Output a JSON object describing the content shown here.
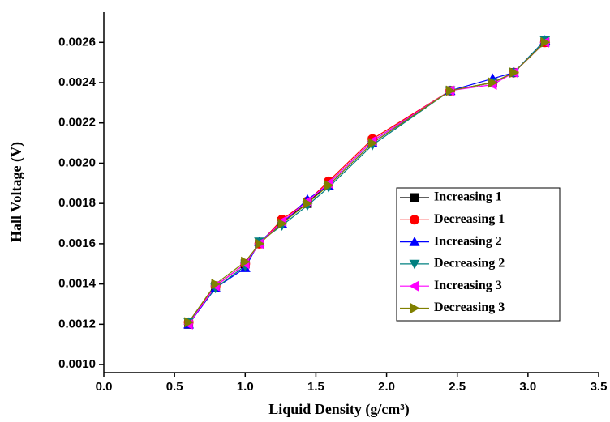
{
  "chart_data": {
    "type": "line",
    "x_label": "Liquid Density (g/cm³)",
    "y_label": "Hall Voltage (V)",
    "x": [
      0.6,
      0.79,
      1.0,
      1.1,
      1.26,
      1.44,
      1.59,
      1.9,
      2.45,
      2.75,
      2.9,
      3.12
    ],
    "series": [
      {
        "name": "Increasing 1",
        "color": "#000000",
        "marker": "square",
        "values": [
          0.0012,
          0.00139,
          0.0015,
          0.0016,
          0.00171,
          0.0018,
          0.0019,
          0.00211,
          0.00236,
          0.0024,
          0.00245,
          0.0026
        ]
      },
      {
        "name": "Decreasing 1",
        "color": "#ff0000",
        "marker": "circle",
        "values": [
          0.00121,
          0.00139,
          0.0015,
          0.0016,
          0.00172,
          0.00181,
          0.00191,
          0.00212,
          0.00236,
          0.0024,
          0.00245,
          0.0026
        ]
      },
      {
        "name": "Increasing 2",
        "color": "#0000ff",
        "marker": "triangle-up",
        "values": [
          0.0012,
          0.00138,
          0.00148,
          0.00161,
          0.0017,
          0.00182,
          0.00189,
          0.0021,
          0.00236,
          0.00242,
          0.00245,
          0.00261
        ]
      },
      {
        "name": "Decreasing 2",
        "color": "#008080",
        "marker": "triangle-down",
        "values": [
          0.00121,
          0.00138,
          0.00149,
          0.00161,
          0.00169,
          0.00179,
          0.00188,
          0.00209,
          0.00236,
          0.0024,
          0.00245,
          0.00261
        ]
      },
      {
        "name": "Increasing 3",
        "color": "#ff00ff",
        "marker": "triangle-left",
        "values": [
          0.0012,
          0.00139,
          0.0015,
          0.0016,
          0.00171,
          0.00181,
          0.0019,
          0.00211,
          0.00236,
          0.00239,
          0.00245,
          0.0026
        ]
      },
      {
        "name": "Decreasing 3",
        "color": "#808000",
        "marker": "triangle-right",
        "values": [
          0.00121,
          0.0014,
          0.00151,
          0.0016,
          0.0017,
          0.0018,
          0.00189,
          0.0021,
          0.00236,
          0.0024,
          0.00245,
          0.0026
        ]
      }
    ],
    "xlim": [
      0,
      3.5
    ],
    "xticks": [
      {
        "value": 0,
        "label": "0.0"
      },
      0.5,
      {
        "value": 1,
        "label": "1.0"
      },
      1.5,
      {
        "value": 2,
        "label": "2.0"
      },
      2.5,
      {
        "value": 3,
        "label": "3.0"
      },
      3.5
    ],
    "ylim": [
      0.00096,
      0.00275
    ],
    "yticks": [
      {
        "value": 0.001,
        "label": "0.0010"
      },
      {
        "value": 0.0012,
        "label": "0.0012"
      },
      {
        "value": 0.0014,
        "label": "0.0014"
      },
      {
        "value": 0.0016,
        "label": "0.0016"
      },
      {
        "value": 0.0018,
        "label": "0.0018"
      },
      {
        "value": 0.002,
        "label": "0.0020"
      },
      {
        "value": 0.0022,
        "label": "0.0022"
      },
      {
        "value": 0.0024,
        "label": "0.0024"
      },
      {
        "value": 0.0026,
        "label": "0.0026"
      }
    ],
    "grid": false,
    "legend": "right"
  }
}
